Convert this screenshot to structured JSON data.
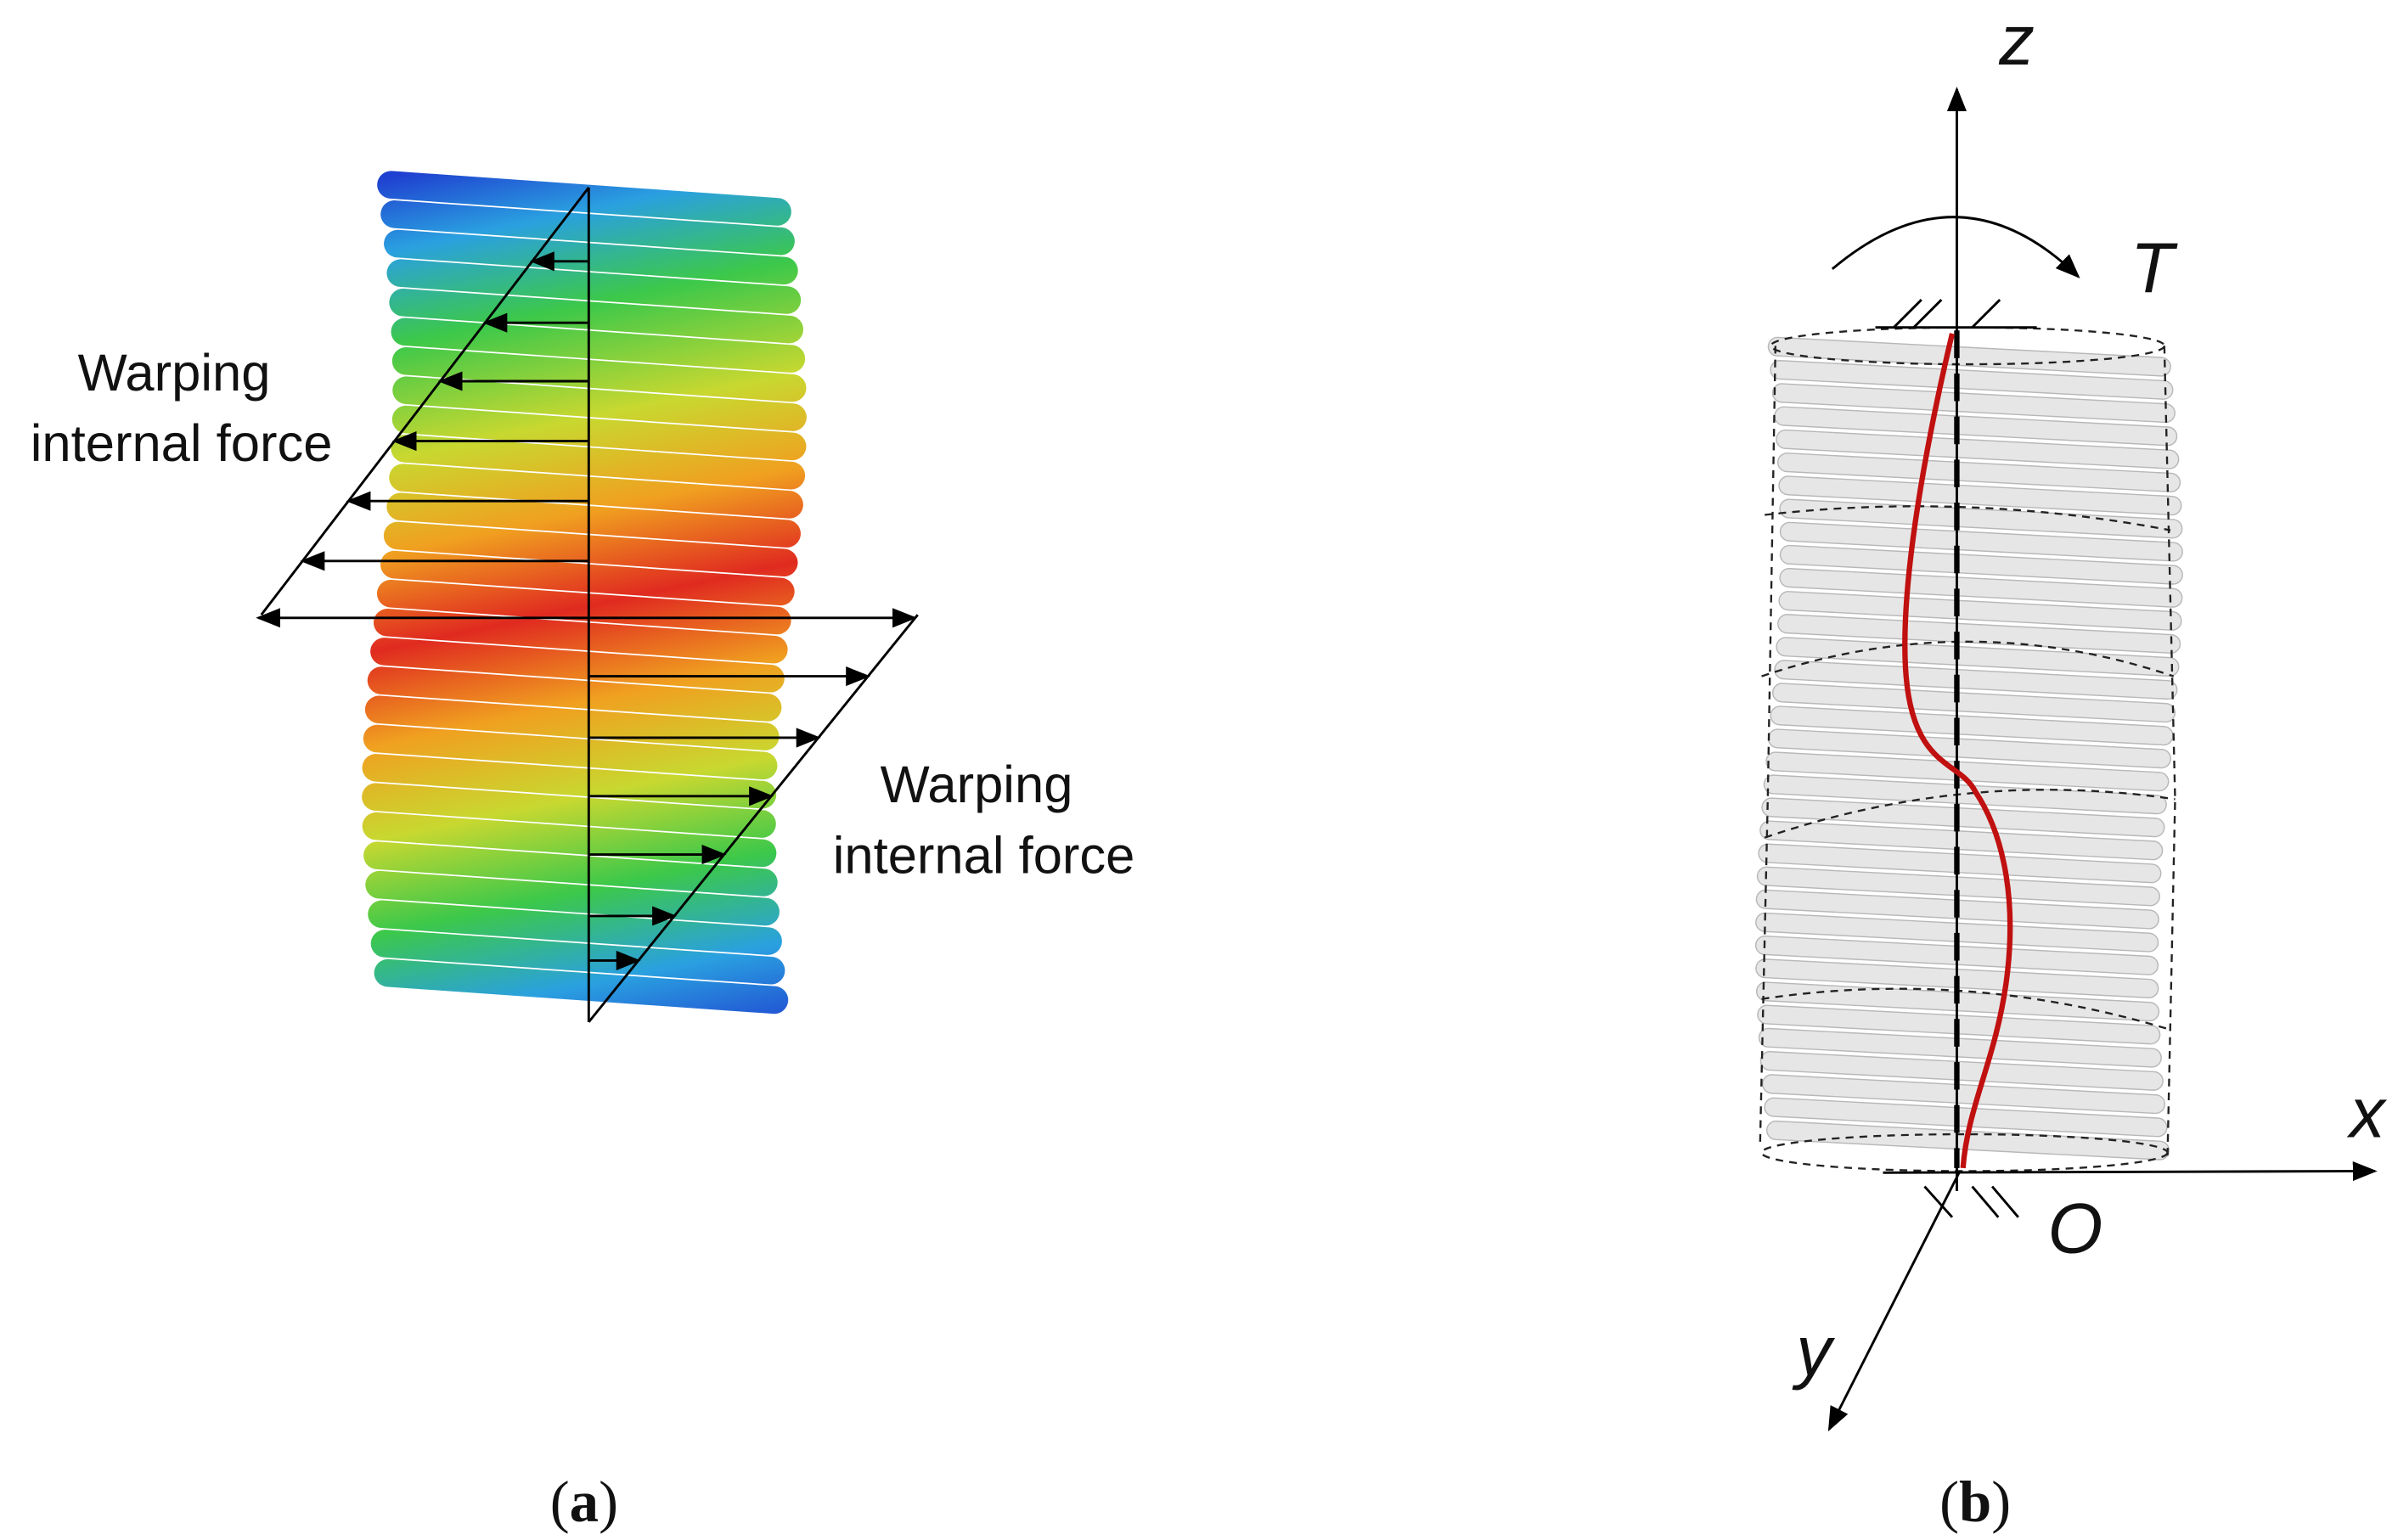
{
  "panels": [
    {
      "annotations": [
        {
          "lines": [
            "Warping",
            "internal force"
          ]
        },
        {
          "lines": [
            "Warping",
            "internal force"
          ]
        }
      ],
      "caption": [
        "(",
        "a",
        ")"
      ]
    },
    {
      "axes": {
        "z": "z",
        "x": "x",
        "y": "y",
        "origin": "O",
        "torque": "T"
      },
      "caption": [
        "(",
        "b",
        ")"
      ]
    }
  ]
}
